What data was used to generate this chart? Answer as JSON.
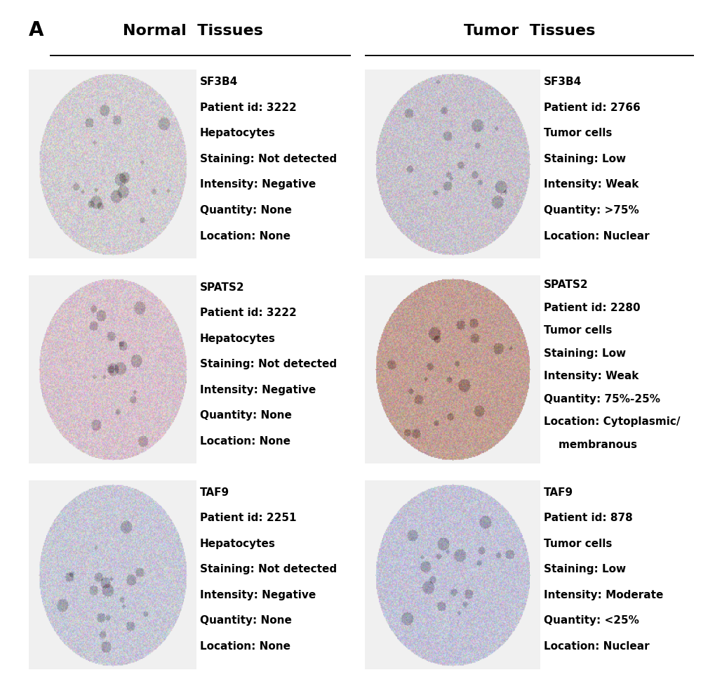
{
  "panel_label": "A",
  "left_header": "Normal  Tissues",
  "right_header": "Tumor  Tissues",
  "background_color": "#f0f0f0",
  "rows": [
    {
      "normal": {
        "gene": "SF3B4",
        "patient_id": "3222",
        "cell_type": "Hepatocytes",
        "staining": "Not detected",
        "intensity": "Negative",
        "quantity": "None",
        "location": "None",
        "img_color": [
          210,
          205,
          210
        ]
      },
      "tumor": {
        "gene": "SF3B4",
        "patient_id": "2766",
        "cell_type": "Tumor cells",
        "staining": "Low",
        "intensity": "Weak",
        "quantity": ">75%",
        "location": "Nuclear",
        "img_color": [
          200,
          195,
          205
        ]
      }
    },
    {
      "normal": {
        "gene": "SPATS2",
        "patient_id": "3222",
        "cell_type": "Hepatocytes",
        "staining": "Not detected",
        "intensity": "Negative",
        "quantity": "None",
        "location": "None",
        "img_color": [
          215,
          195,
          205
        ]
      },
      "tumor": {
        "gene": "SPATS2",
        "patient_id": "2280",
        "cell_type": "Tumor cells",
        "staining": "Low",
        "intensity": "Weak",
        "quantity": "75%-25%",
        "location": "Cytoplasmic/\n    membranous",
        "img_color": [
          195,
          160,
          150
        ]
      }
    },
    {
      "normal": {
        "gene": "TAF9",
        "patient_id": "2251",
        "cell_type": "Hepatocytes",
        "staining": "Not detected",
        "intensity": "Negative",
        "quantity": "None",
        "location": "None",
        "img_color": [
          200,
          200,
          215
        ]
      },
      "tumor": {
        "gene": "TAF9",
        "patient_id": "878",
        "cell_type": "Tumor cells",
        "staining": "Low",
        "intensity": "Moderate",
        "quantity": "<25%",
        "location": "Nuclear",
        "img_color": [
          195,
          195,
          215
        ]
      }
    }
  ],
  "header_fontsize": 16,
  "text_fontsize": 11,
  "gene_fontsize": 12,
  "panel_fontsize": 20
}
